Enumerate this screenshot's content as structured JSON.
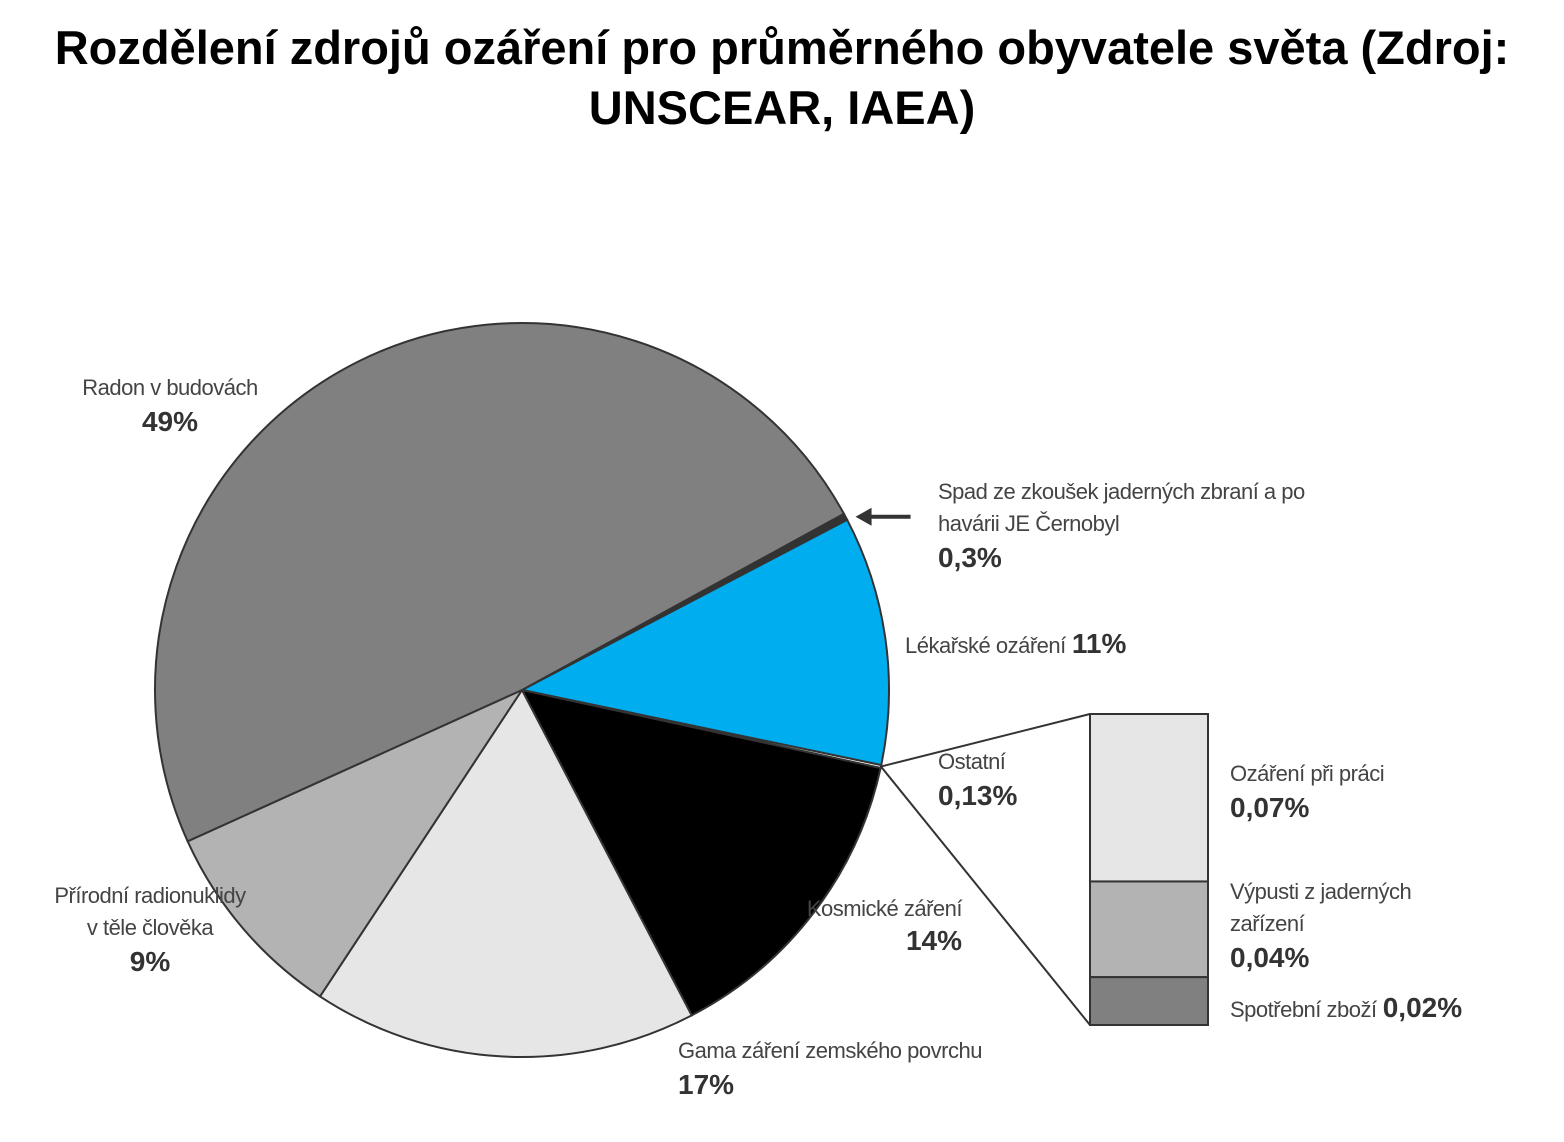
{
  "chart_data": {
    "type": "pie",
    "title": "Rozdělení zdrojů ozáření pro průměrného obyvatele světa (Zdroj: UNSCEAR, IAEA)",
    "categories": [
      "Spad ze zkoušek jaderných zbraní a po havárii JE Černobyl",
      "Lékařské ozáření",
      "Ostatní",
      "Kosmické záření",
      "Gama záření zemského povrchu",
      "Přírodní radionuklidy v těle člověka",
      "Radon v budovách"
    ],
    "values": [
      0.3,
      11,
      0.13,
      14,
      17,
      9,
      49
    ],
    "value_labels": [
      "0,3%",
      "11%",
      "0,13%",
      "14%",
      "17%",
      "9%",
      "49%"
    ],
    "colors": [
      "#333333",
      "#00aeef",
      "#ffffff",
      "#000000",
      "#e6e6e6",
      "#b3b3b3",
      "#808080"
    ],
    "breakdown": {
      "categories": [
        "Ozáření při práci",
        "Výpusti z jaderných zařízení",
        "Spotřební zboží"
      ],
      "values": [
        0.07,
        0.04,
        0.02
      ],
      "value_labels": [
        "0,07%",
        "0,04%",
        "0,02%"
      ],
      "colors": [
        "#e6e6e6",
        "#b3b3b3",
        "#808080"
      ]
    }
  }
}
